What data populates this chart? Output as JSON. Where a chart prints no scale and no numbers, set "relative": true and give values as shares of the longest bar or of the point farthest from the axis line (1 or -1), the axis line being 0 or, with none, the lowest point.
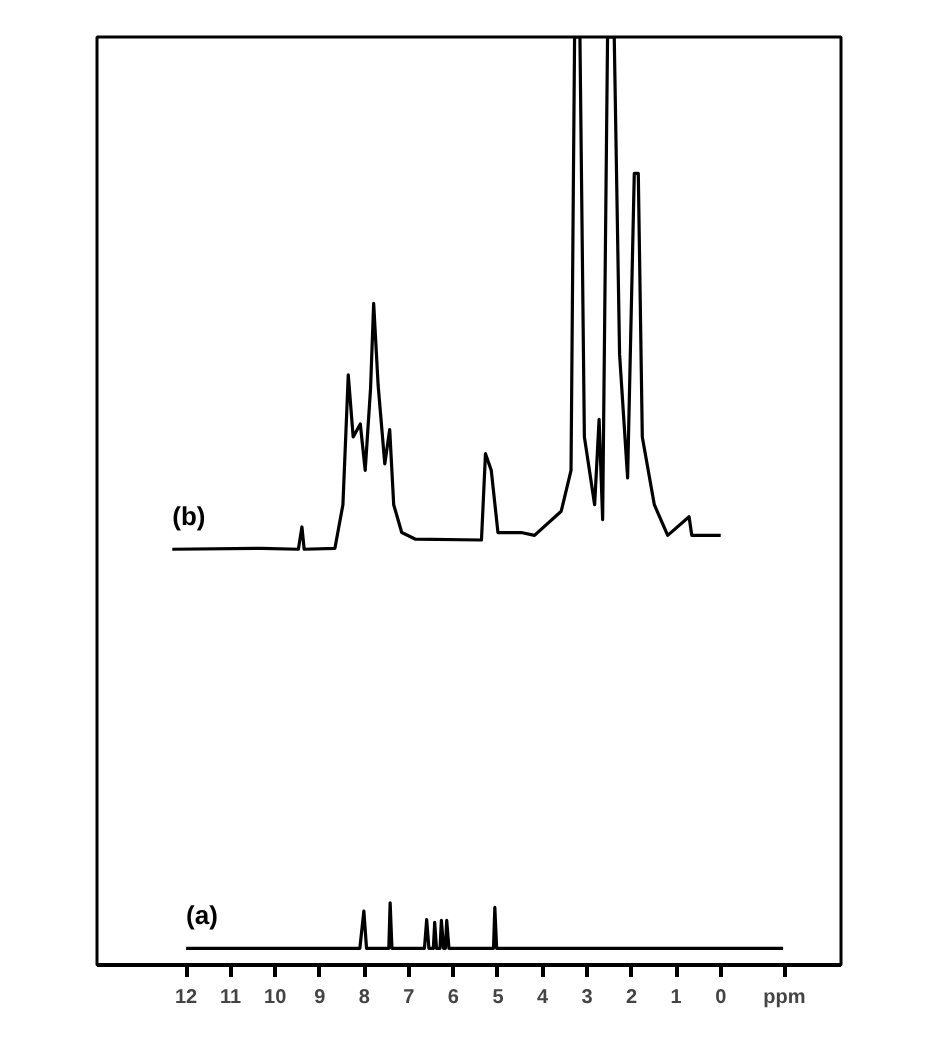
{
  "chart_data": {
    "type": "line",
    "relative": true,
    "xlim": [
      14,
      -2.7
    ],
    "xticks": [
      12,
      11,
      10,
      9,
      8,
      7,
      6,
      5,
      4,
      3,
      2,
      1,
      0,
      {
        "value": -1.43,
        "label": "ppm"
      }
    ],
    "grid": false,
    "tick_labels": "x",
    "marker": "none",
    "line_style": "solid",
    "series": [
      {
        "name": "(a)",
        "color": "#000000",
        "x": [
          12.0,
          8.1,
          8.01,
          7.95,
          7.45,
          7.42,
          7.38,
          6.65,
          6.6,
          6.55,
          6.45,
          6.42,
          6.38,
          6.3,
          6.27,
          6.22,
          6.18,
          6.15,
          6.1,
          5.1,
          5.07,
          5.03,
          -1.4
        ],
        "values": [
          0.018,
          0.018,
          0.058,
          0.018,
          0.018,
          0.067,
          0.018,
          0.018,
          0.049,
          0.018,
          0.018,
          0.046,
          0.018,
          0.018,
          0.048,
          0.018,
          0.018,
          0.048,
          0.018,
          0.018,
          0.062,
          0.018,
          0.018
        ]
      },
      {
        "name": "(b)",
        "color": "#000000",
        "x": [
          12.31,
          10.3,
          9.48,
          9.4,
          9.35,
          8.66,
          8.48,
          8.36,
          8.25,
          8.09,
          7.98,
          7.86,
          7.79,
          7.69,
          7.54,
          7.43,
          7.34,
          7.16,
          6.86,
          5.37,
          5.28,
          5.15,
          5.0,
          4.48,
          4.18,
          3.58,
          3.36,
          3.28,
          3.16,
          3.06,
          2.83,
          2.73,
          2.65,
          2.54,
          2.39,
          2.27,
          2.09,
          1.94,
          1.85,
          1.76,
          1.49,
          1.19,
          0.71,
          0.65,
          0.0
        ],
        "values": [
          0.448,
          0.449,
          0.448,
          0.472,
          0.448,
          0.449,
          0.496,
          0.636,
          0.569,
          0.583,
          0.533,
          0.621,
          0.713,
          0.625,
          0.54,
          0.577,
          0.496,
          0.466,
          0.459,
          0.458,
          0.551,
          0.533,
          0.466,
          0.466,
          0.463,
          0.489,
          0.533,
          1.0,
          1.0,
          0.569,
          0.496,
          0.588,
          0.48,
          1.0,
          1.0,
          0.658,
          0.525,
          0.853,
          0.853,
          0.569,
          0.496,
          0.463,
          0.483,
          0.463,
          0.463
        ]
      }
    ]
  }
}
